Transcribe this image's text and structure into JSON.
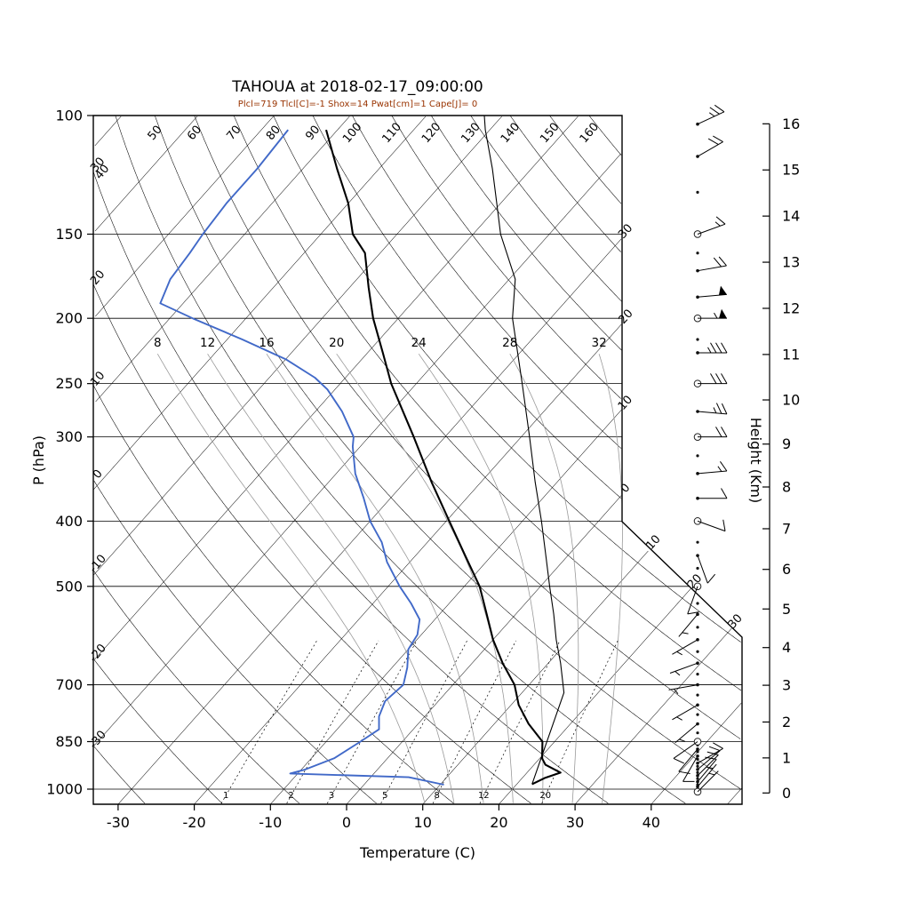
{
  "title": "TAHOUA at 2018-02-17_09:00:00",
  "subtitle": "Plcl=719 Tlcl[C]=-1 Shox=14 Pwat[cm]=1 Cape[J]= 0",
  "colors": {
    "temperature": "#000000",
    "dewpoint": "#4169c8",
    "parcel": "#000000",
    "subtitle": "#993300",
    "moist_adiabat": "#9a9a9a",
    "grid": "#000000"
  },
  "axes": {
    "pressure_label": "P (hPa)",
    "pressure_ticks": [
      100,
      150,
      200,
      250,
      300,
      400,
      500,
      700,
      850,
      1000
    ],
    "temperature_label": "Temperature (C)",
    "temperature_ticks": [
      -30,
      -20,
      -10,
      0,
      10,
      20,
      30,
      40
    ],
    "height_label": "Height (Km)",
    "height_ticks": [
      0,
      1,
      2,
      3,
      4,
      5,
      6,
      7,
      8,
      9,
      10,
      11,
      12,
      13,
      14,
      15,
      16
    ]
  },
  "chart_data": {
    "type": "skewt-log-p",
    "pressure_range_hpa": [
      100,
      1050
    ],
    "isotherms_c": [
      -110,
      -100,
      -90,
      -80,
      -70,
      -60,
      -50,
      -40,
      -30,
      -20,
      -10,
      0,
      10,
      20,
      30,
      40,
      50
    ],
    "isotherm_edge_labels": [
      {
        "text": "30",
        "value": -30
      },
      {
        "text": "20",
        "value": -20
      },
      {
        "text": "10",
        "value": -10
      },
      {
        "text": "0",
        "value": 0
      },
      {
        "text": "10",
        "value": 10
      },
      {
        "text": "20",
        "value": 20
      },
      {
        "text": "30",
        "value": 30
      }
    ],
    "dry_adiabat_labels": [
      {
        "text": "-30",
        "value": -30
      },
      {
        "text": "-20",
        "value": -20
      },
      {
        "text": "-10",
        "value": -10
      },
      {
        "text": "0",
        "value": 0
      },
      {
        "text": "10",
        "value": 10
      },
      {
        "text": "20",
        "value": 20
      },
      {
        "text": "30",
        "value": 30
      },
      {
        "text": "40",
        "value": 40
      },
      {
        "text": "50",
        "value": 50
      },
      {
        "text": "60",
        "value": 60
      },
      {
        "text": "70",
        "value": 70
      },
      {
        "text": "80",
        "value": 80
      },
      {
        "text": "90",
        "value": 90
      },
      {
        "text": "100",
        "value": 100
      },
      {
        "text": "110",
        "value": 110
      },
      {
        "text": "120",
        "value": 120
      },
      {
        "text": "130",
        "value": 130
      },
      {
        "text": "140",
        "value": 140
      },
      {
        "text": "150",
        "value": 150
      },
      {
        "text": "160",
        "value": 160
      }
    ],
    "moist_adiabats_c": [
      8,
      12,
      16,
      20,
      24,
      28,
      32
    ],
    "mixing_ratio_g_kg": [
      1,
      2,
      3,
      5,
      8,
      12,
      20
    ],
    "temperature_profile_p_t": [
      [
        983,
        22.0
      ],
      [
        962,
        23.0
      ],
      [
        945,
        24.4
      ],
      [
        920,
        21.5
      ],
      [
        900,
        20.3
      ],
      [
        850,
        18.4
      ],
      [
        800,
        14.5
      ],
      [
        750,
        11.0
      ],
      [
        700,
        8.1
      ],
      [
        650,
        4.0
      ],
      [
        600,
        0.0
      ],
      [
        550,
        -3.8
      ],
      [
        500,
        -8.0
      ],
      [
        450,
        -13.5
      ],
      [
        400,
        -19.6
      ],
      [
        350,
        -26.5
      ],
      [
        300,
        -34.1
      ],
      [
        250,
        -43.3
      ],
      [
        225,
        -48.0
      ],
      [
        200,
        -53.3
      ],
      [
        180,
        -57.5
      ],
      [
        160,
        -62.0
      ],
      [
        150,
        -65.8
      ],
      [
        135,
        -70.0
      ],
      [
        120,
        -75.5
      ],
      [
        105,
        -81.5
      ]
    ],
    "dewpoint_profile_p_t": [
      [
        985,
        10.5
      ],
      [
        960,
        5.0
      ],
      [
        948,
        -11.0
      ],
      [
        935,
        -9.5
      ],
      [
        900,
        -7.0
      ],
      [
        850,
        -5.5
      ],
      [
        815,
        -4.5
      ],
      [
        780,
        -6.0
      ],
      [
        740,
        -7.0
      ],
      [
        700,
        -6.5
      ],
      [
        660,
        -8.0
      ],
      [
        620,
        -10.0
      ],
      [
        590,
        -10.5
      ],
      [
        560,
        -12.0
      ],
      [
        530,
        -15.0
      ],
      [
        500,
        -18.5
      ],
      [
        460,
        -23.0
      ],
      [
        430,
        -26.0
      ],
      [
        400,
        -30.0
      ],
      [
        370,
        -33.5
      ],
      [
        340,
        -37.5
      ],
      [
        310,
        -41.0
      ],
      [
        300,
        -42.0
      ],
      [
        275,
        -46.5
      ],
      [
        255,
        -51.0
      ],
      [
        245,
        -54.0
      ],
      [
        230,
        -60.0
      ],
      [
        215,
        -68.0
      ],
      [
        200,
        -77.0
      ],
      [
        190,
        -83.0
      ],
      [
        175,
        -84.5
      ],
      [
        160,
        -85.0
      ],
      [
        150,
        -85.5
      ],
      [
        135,
        -86.0
      ],
      [
        120,
        -86.0
      ],
      [
        105,
        -86.5
      ]
    ],
    "parcel_profile_p_t": [
      [
        983,
        22.0
      ],
      [
        719,
        15.5
      ],
      [
        650,
        11.6
      ],
      [
        600,
        8.3
      ],
      [
        550,
        5.0
      ],
      [
        500,
        1.2
      ],
      [
        450,
        -2.9
      ],
      [
        400,
        -7.5
      ],
      [
        350,
        -12.9
      ],
      [
        300,
        -18.9
      ],
      [
        250,
        -26.1
      ],
      [
        225,
        -30.3
      ],
      [
        200,
        -35.0
      ],
      [
        175,
        -39.2
      ],
      [
        150,
        -46.4
      ],
      [
        135,
        -50.5
      ],
      [
        120,
        -55.1
      ],
      [
        105,
        -60.6
      ],
      [
        100,
        -62.4
      ]
    ],
    "wind_barbs": [
      {
        "p": 103,
        "speed_kt": 25,
        "dir_deg": 65
      },
      {
        "p": 115,
        "speed_kt": 20,
        "dir_deg": 60
      },
      {
        "p": 150,
        "speed_kt": 15,
        "dir_deg": 70,
        "circle": true
      },
      {
        "p": 170,
        "speed_kt": 20,
        "dir_deg": 80
      },
      {
        "p": 186,
        "speed_kt": 50,
        "dir_deg": 85
      },
      {
        "p": 200,
        "speed_kt": 55,
        "dir_deg": 90,
        "circle": true
      },
      {
        "p": 225,
        "speed_kt": 35,
        "dir_deg": 90
      },
      {
        "p": 250,
        "speed_kt": 30,
        "dir_deg": 90,
        "circle": true
      },
      {
        "p": 275,
        "speed_kt": 25,
        "dir_deg": 95
      },
      {
        "p": 300,
        "speed_kt": 20,
        "dir_deg": 90,
        "circle": true
      },
      {
        "p": 340,
        "speed_kt": 15,
        "dir_deg": 85
      },
      {
        "p": 370,
        "speed_kt": 10,
        "dir_deg": 90
      },
      {
        "p": 400,
        "speed_kt": 10,
        "dir_deg": 110,
        "circle": true
      },
      {
        "p": 450,
        "speed_kt": 10,
        "dir_deg": 160
      },
      {
        "p": 500,
        "speed_kt": 10,
        "dir_deg": 200,
        "circle": true
      },
      {
        "p": 550,
        "speed_kt": 5,
        "dir_deg": 220
      },
      {
        "p": 600,
        "speed_kt": 5,
        "dir_deg": 240
      },
      {
        "p": 650,
        "speed_kt": 5,
        "dir_deg": 250
      },
      {
        "p": 700,
        "speed_kt": 5,
        "dir_deg": 260
      },
      {
        "p": 750,
        "speed_kt": 5,
        "dir_deg": 240
      },
      {
        "p": 800,
        "speed_kt": 5,
        "dir_deg": 230
      },
      {
        "p": 850,
        "speed_kt": 10,
        "dir_deg": 235,
        "circle": true
      },
      {
        "p": 872,
        "speed_kt": 8,
        "dir_deg": 220
      },
      {
        "p": 893,
        "speed_kt": 8,
        "dir_deg": 210
      },
      {
        "p": 915,
        "speed_kt": 8,
        "dir_deg": 60
      },
      {
        "p": 935,
        "speed_kt": 10,
        "dir_deg": 50
      },
      {
        "p": 955,
        "speed_kt": 10,
        "dir_deg": 45
      },
      {
        "p": 975,
        "speed_kt": 8,
        "dir_deg": 40
      },
      {
        "p": 992,
        "speed_kt": 6,
        "dir_deg": 40
      },
      {
        "p": 1009,
        "speed_kt": 5,
        "dir_deg": 45,
        "circle": true
      }
    ],
    "wind_dots_p": [
      130,
      160,
      215,
      320,
      430,
      470,
      530,
      575,
      625,
      675,
      725,
      775,
      825,
      860,
      880,
      903,
      925,
      945,
      965,
      985,
      1000
    ]
  }
}
